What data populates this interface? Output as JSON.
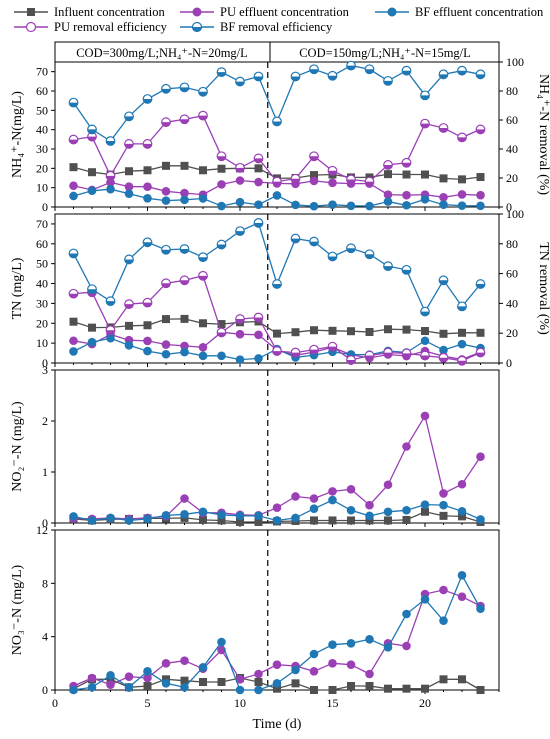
{
  "conditions": [
    "COD=300mg/L;NH₄⁺-N=20mg/L",
    "COD=150mg/L;NH₄⁺-N=15mg/L"
  ],
  "legend": {
    "influent": "Influent concentration",
    "pu_eff": "PU effluent concentration",
    "bf_eff": "BF effluent concentration",
    "pu_rem": "PU removal efficiency",
    "bf_rem": "BF removal efficiency"
  },
  "colors": {
    "influent": "#505050",
    "pu": "#9b3fb5",
    "bf": "#1f77b4"
  },
  "xlabel": "Time (d)",
  "phase_divider_day": 11.5,
  "chart_data": [
    {
      "type": "line",
      "ylabel": "NH₄⁺-N(mg/L)",
      "y2label": "NH₄⁺-N removal (%)",
      "xlim": [
        0,
        24
      ],
      "ylim": [
        0,
        75
      ],
      "y2lim": [
        0,
        100
      ],
      "yticks": [
        0,
        10,
        20,
        30,
        40,
        50,
        60,
        70
      ],
      "y2ticks": [
        0,
        20,
        40,
        60,
        80,
        100
      ],
      "x": [
        1,
        2,
        3,
        4,
        5,
        6,
        7,
        8,
        9,
        10,
        11,
        12,
        13,
        14,
        15,
        16,
        17,
        18,
        19,
        20,
        21,
        22,
        23
      ],
      "series": [
        {
          "key": "influent",
          "axis": "left",
          "marker": "square",
          "values": [
            20.6,
            18,
            16.8,
            18.5,
            19,
            21.3,
            21.3,
            19,
            19.8,
            20,
            20,
            14.8,
            15,
            16.5,
            16.8,
            15.3,
            15.3,
            17,
            16.8,
            16.8,
            14.8,
            14.3,
            15.5
          ]
        },
        {
          "key": "pu_eff",
          "axis": "left",
          "marker": "circle",
          "values": [
            11,
            8.8,
            12.7,
            10.5,
            10.5,
            8.1,
            7.2,
            6.4,
            11.7,
            13.7,
            12.9,
            12.2,
            12,
            13.5,
            12.5,
            12.1,
            12.1,
            6.4,
            6.1,
            6.4,
            5,
            6.5,
            6.1
          ]
        },
        {
          "key": "bf_eff",
          "axis": "left",
          "marker": "circle",
          "values": [
            5.7,
            8.4,
            9.2,
            6.9,
            4.5,
            3.3,
            3.7,
            4.4,
            0.5,
            2.5,
            1.2,
            6,
            1.1,
            0.4,
            1.2,
            0.6,
            0.5,
            2.8,
            0.9,
            4,
            1.2,
            0.7,
            0.6
          ]
        },
        {
          "key": "pu_rem",
          "axis": "right",
          "marker": "half",
          "values": [
            46.5,
            48.5,
            21.5,
            43.5,
            43.5,
            58.5,
            60.5,
            63,
            35,
            27,
            33.5,
            17.5,
            19.5,
            35,
            25,
            19,
            17.5,
            29,
            30.5,
            57.5,
            54.5,
            48,
            53.5
          ]
        },
        {
          "key": "bf_rem",
          "axis": "right",
          "marker": "half",
          "values": [
            72,
            53.5,
            45.5,
            62.5,
            74.5,
            81.5,
            82.5,
            79.5,
            93,
            86.5,
            90,
            59,
            90,
            95,
            90.5,
            97.5,
            95,
            87,
            94,
            77,
            91.5,
            94,
            91.5
          ]
        }
      ]
    },
    {
      "type": "line",
      "ylabel": "TN (mg/L)",
      "y2label": "TN removal (%)",
      "xlim": [
        0,
        24
      ],
      "ylim": [
        0,
        75
      ],
      "y2lim": [
        0,
        100
      ],
      "yticks": [
        0,
        10,
        20,
        30,
        40,
        50,
        60,
        70
      ],
      "y2ticks": [
        0,
        20,
        40,
        60,
        80,
        100
      ],
      "x": [
        1,
        2,
        3,
        4,
        5,
        6,
        7,
        8,
        9,
        10,
        11,
        12,
        13,
        14,
        15,
        16,
        17,
        18,
        19,
        20,
        21,
        22,
        23
      ],
      "series": [
        {
          "key": "influent",
          "axis": "left",
          "marker": "square",
          "values": [
            20.8,
            17.8,
            17.9,
            18.7,
            19,
            22.1,
            22.2,
            20,
            19.6,
            20.5,
            20.9,
            14.8,
            15.5,
            16.5,
            16.2,
            16,
            15.6,
            17,
            16.8,
            16.1,
            14.7,
            15.2,
            15.2
          ]
        },
        {
          "key": "pu_eff",
          "axis": "left",
          "marker": "circle",
          "values": [
            11.2,
            9.5,
            14.4,
            11.5,
            11.1,
            9.3,
            8.6,
            7.9,
            15.5,
            14.5,
            14.2,
            6.5,
            3.9,
            5.5,
            7.9,
            4.2,
            2.5,
            4.3,
            3.5,
            6,
            3.4,
            1.8,
            5.5
          ]
        },
        {
          "key": "bf_eff",
          "axis": "left",
          "marker": "circle",
          "values": [
            5.8,
            10.5,
            12.5,
            8.9,
            6,
            4.4,
            5.5,
            3.6,
            3.6,
            1.7,
            2.3,
            7,
            2.8,
            4,
            5.6,
            4.3,
            4.2,
            6.1,
            5.3,
            11.2,
            6.5,
            9.5,
            7.5
          ]
        },
        {
          "key": "pu_rem",
          "axis": "right",
          "marker": "half",
          "values": [
            46.5,
            47.5,
            22,
            39.5,
            40.5,
            53.5,
            55.5,
            58.5,
            20.5,
            29.5,
            30.5,
            8,
            7,
            9,
            11,
            2,
            5,
            7,
            6.5,
            5,
            3.5,
            1.5,
            7
          ]
        },
        {
          "key": "bf_rem",
          "axis": "right",
          "marker": "half",
          "values": [
            73.5,
            49.5,
            41.5,
            69.5,
            81,
            76,
            76.5,
            71,
            79.5,
            88.5,
            94,
            53,
            83.5,
            81.5,
            71.5,
            77,
            73,
            65,
            62.5,
            34.5,
            55.5,
            38,
            53
          ]
        }
      ]
    },
    {
      "type": "line",
      "ylabel": "NO₂⁻-N (mg/L)",
      "xlim": [
        0,
        24
      ],
      "ylim": [
        0,
        3
      ],
      "yticks": [
        0,
        1,
        2,
        3
      ],
      "x": [
        1,
        2,
        3,
        4,
        5,
        6,
        7,
        8,
        9,
        10,
        11,
        12,
        13,
        14,
        15,
        16,
        17,
        18,
        19,
        20,
        21,
        22,
        23
      ],
      "series": [
        {
          "key": "influent",
          "axis": "left",
          "marker": "square",
          "values": [
            0.08,
            0.05,
            0.07,
            0.08,
            0.09,
            0.09,
            0.1,
            0.06,
            0.05,
            0.02,
            0.02,
            0.03,
            0.04,
            0.05,
            0.05,
            0.05,
            0.05,
            0.05,
            0.06,
            0.22,
            0.14,
            0.13,
            0.02
          ]
        },
        {
          "key": "pu_eff",
          "axis": "left",
          "marker": "circle",
          "values": [
            0.09,
            0.08,
            0.1,
            0.08,
            0.1,
            0.13,
            0.48,
            0.2,
            0.2,
            0.16,
            0.15,
            0.3,
            0.52,
            0.48,
            0.62,
            0.66,
            0.35,
            0.75,
            1.5,
            2.1,
            0.58,
            0.76,
            1.3
          ]
        },
        {
          "key": "bf_eff",
          "axis": "left",
          "marker": "circle",
          "values": [
            0.13,
            0.05,
            0.1,
            0.05,
            0.08,
            0.15,
            0.17,
            0.22,
            0.16,
            0.14,
            0.14,
            0.05,
            0.1,
            0.28,
            0.45,
            0.25,
            0.14,
            0.22,
            0.25,
            0.36,
            0.35,
            0.23,
            0.07
          ]
        }
      ]
    },
    {
      "type": "line",
      "ylabel": "NO₃⁻-N (mg/L)",
      "xlim": [
        0,
        24
      ],
      "ylim": [
        0,
        12
      ],
      "yticks": [
        0,
        4,
        8,
        12
      ],
      "xticks": [
        0,
        5,
        10,
        15,
        20
      ],
      "x": [
        1,
        2,
        3,
        4,
        5,
        6,
        7,
        8,
        9,
        10,
        11,
        12,
        13,
        14,
        15,
        16,
        17,
        18,
        19,
        20,
        21,
        22,
        23
      ],
      "series": [
        {
          "key": "influent",
          "axis": "left",
          "marker": "square",
          "values": [
            0.1,
            0.8,
            0.8,
            0.2,
            0.3,
            0.8,
            0.7,
            0.6,
            0.6,
            0.9,
            0.6,
            0.1,
            0.5,
            0,
            0,
            0.3,
            0.3,
            0.1,
            0.1,
            0.1,
            0.8,
            0.8,
            0
          ]
        },
        {
          "key": "pu_eff",
          "axis": "left",
          "marker": "circle",
          "values": [
            0.3,
            0.9,
            0.4,
            1,
            0.9,
            2,
            2.2,
            1.6,
            3,
            0.8,
            1.2,
            1.9,
            1.8,
            1.4,
            2,
            1.9,
            1.2,
            3.5,
            3.3,
            7.2,
            7.5,
            7,
            6.3
          ]
        },
        {
          "key": "bf_eff",
          "axis": "left",
          "marker": "circle",
          "values": [
            0,
            0.2,
            1.1,
            0.2,
            1.4,
            0.5,
            0.2,
            1.7,
            3.6,
            0,
            0,
            0.5,
            1.5,
            2.7,
            3.4,
            3.5,
            3.8,
            3.2,
            5.7,
            6.8,
            5.2,
            8.6,
            6.1
          ]
        }
      ]
    }
  ]
}
